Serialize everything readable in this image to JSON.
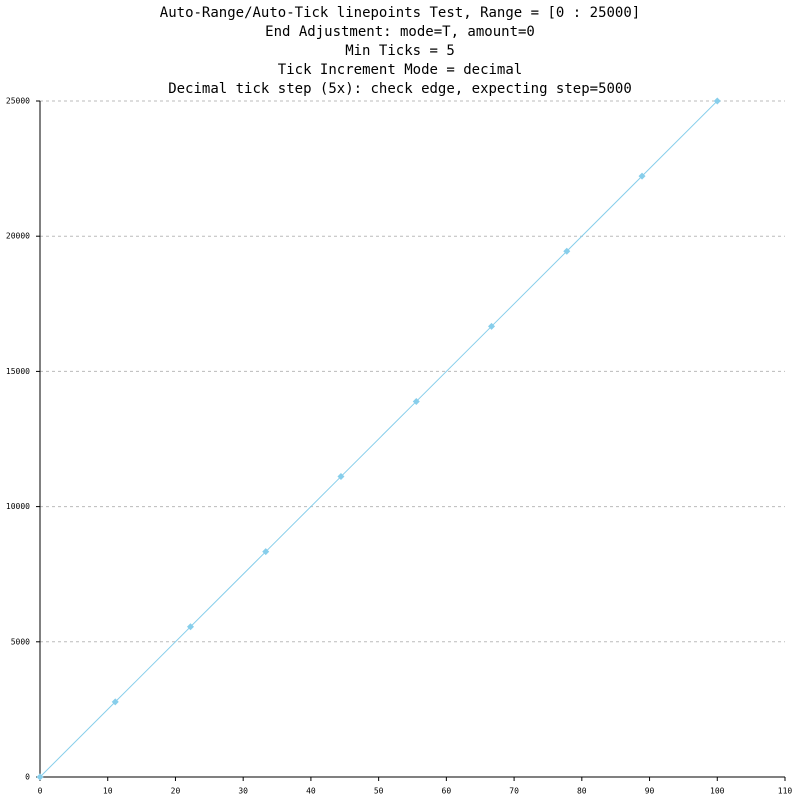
{
  "chart_data": {
    "type": "line",
    "title": [
      "Auto-Range/Auto-Tick linepoints Test, Range = [0 : 25000]",
      "End Adjustment: mode=T, amount=0",
      "Min Ticks = 5",
      "Tick Increment Mode = decimal",
      "Decimal tick step (5x): check edge, expecting step=5000"
    ],
    "x": [
      0,
      11.11,
      22.22,
      33.33,
      44.44,
      55.56,
      66.67,
      77.78,
      88.89,
      100
    ],
    "series": [
      {
        "color": "#87ceeb",
        "values": [
          0,
          2778,
          5556,
          8333,
          11111,
          13889,
          16667,
          19444,
          22222,
          25000
        ]
      }
    ],
    "xlim": [
      0,
      110
    ],
    "xticks": [
      0,
      10,
      20,
      30,
      40,
      50,
      60,
      70,
      80,
      90,
      100,
      110
    ],
    "ylim": [
      0,
      25000
    ],
    "yticks": [
      0,
      5000,
      10000,
      15000,
      20000,
      25000
    ],
    "grid": true
  }
}
